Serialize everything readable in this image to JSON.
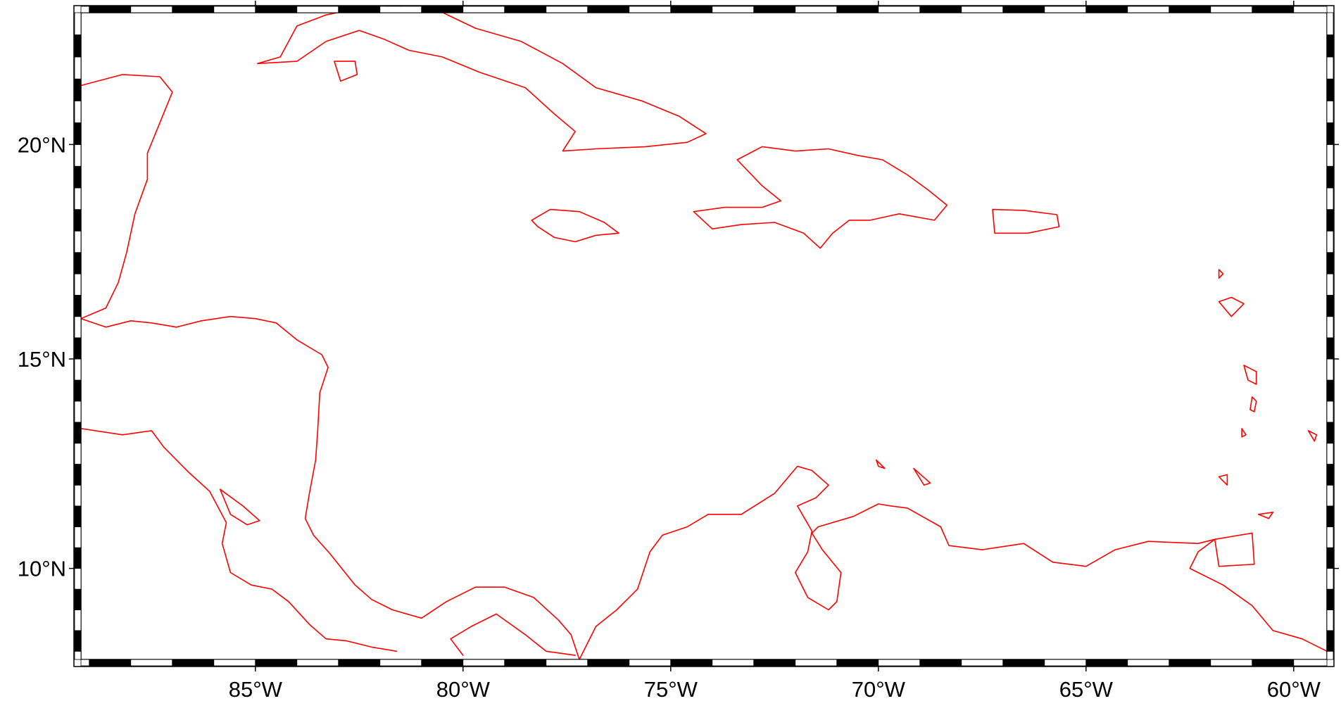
{
  "map": {
    "projection": "Mercator",
    "region": {
      "lon_min": -89.2,
      "lon_max": -59.2,
      "lat_min": 7.8,
      "lat_max": 23.0
    },
    "coastline_color": "#ff0000",
    "frame_style": "fancy checkerboard",
    "x_axis": {
      "ticks": [
        {
          "lon": -85,
          "label": "85°W"
        },
        {
          "lon": -80,
          "label": "80°W"
        },
        {
          "lon": -75,
          "label": "75°W"
        },
        {
          "lon": -70,
          "label": "70°W"
        },
        {
          "lon": -65,
          "label": "65°W"
        },
        {
          "lon": -60,
          "label": "60°W"
        }
      ]
    },
    "y_axis": {
      "ticks": [
        {
          "lat": 10,
          "label": "10°N"
        },
        {
          "lat": 15,
          "label": "15°N"
        },
        {
          "lat": 20,
          "label": "20°N"
        }
      ]
    }
  }
}
